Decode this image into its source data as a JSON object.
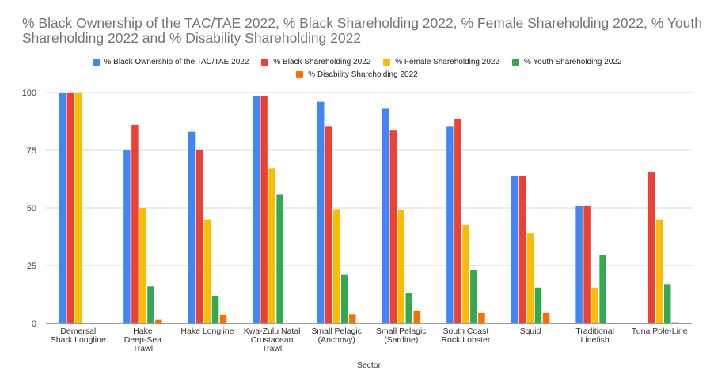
{
  "chart_data": {
    "type": "bar",
    "title": "% Black Ownership of the TAC/TAE 2022, % Black Shareholding 2022, % Female Shareholding 2022, % Youth Shareholding 2022 and % Disability Shareholding 2022",
    "xlabel": "Sector",
    "ylabel": "",
    "ylim": [
      0,
      100
    ],
    "yticks": [
      "0",
      "25",
      "50",
      "75",
      "100"
    ],
    "grid": true,
    "legend_position": "top",
    "categories": [
      [
        "Demersal",
        "Shark Longline"
      ],
      [
        "Hake",
        "Deep-Sea",
        "Trawl"
      ],
      [
        "Hake Longline"
      ],
      [
        "Kwa-Zulu Natal",
        "Crustacean",
        "Trawl"
      ],
      [
        "Small Pelagic",
        "(Anchovy)"
      ],
      [
        "Small Pelagic",
        "(Sardine)"
      ],
      [
        "South Coast",
        "Rock Lobster"
      ],
      [
        "Squid"
      ],
      [
        "Traditional",
        "Linefish"
      ],
      [
        "Tuna Pole-Line"
      ]
    ],
    "series": [
      {
        "name": "% Black Ownership of the TAC/TAE 2022",
        "color": "#4285F4",
        "values": [
          100,
          75,
          83,
          98.5,
          96,
          93,
          85.5,
          64,
          51,
          null
        ]
      },
      {
        "name": "% Black Shareholding 2022",
        "color": "#EA4335",
        "values": [
          100,
          86,
          75,
          98.5,
          85.5,
          83.5,
          88.5,
          64,
          51,
          65.5
        ]
      },
      {
        "name": "% Female Shareholding 2022",
        "color": "#FBBC04",
        "values": [
          100,
          50,
          45,
          67,
          49.5,
          49,
          42.5,
          39,
          15.5,
          45
        ]
      },
      {
        "name": "% Youth Shareholding 2022",
        "color": "#34A853",
        "values": [
          null,
          16,
          12,
          56,
          21,
          13,
          23,
          15.5,
          29.5,
          17
        ]
      },
      {
        "name": "% Disability Shareholding 2022",
        "color": "#FF6D01",
        "values": [
          null,
          1.5,
          3.5,
          null,
          4,
          5.5,
          4.5,
          4.5,
          null,
          0.5
        ]
      }
    ]
  }
}
